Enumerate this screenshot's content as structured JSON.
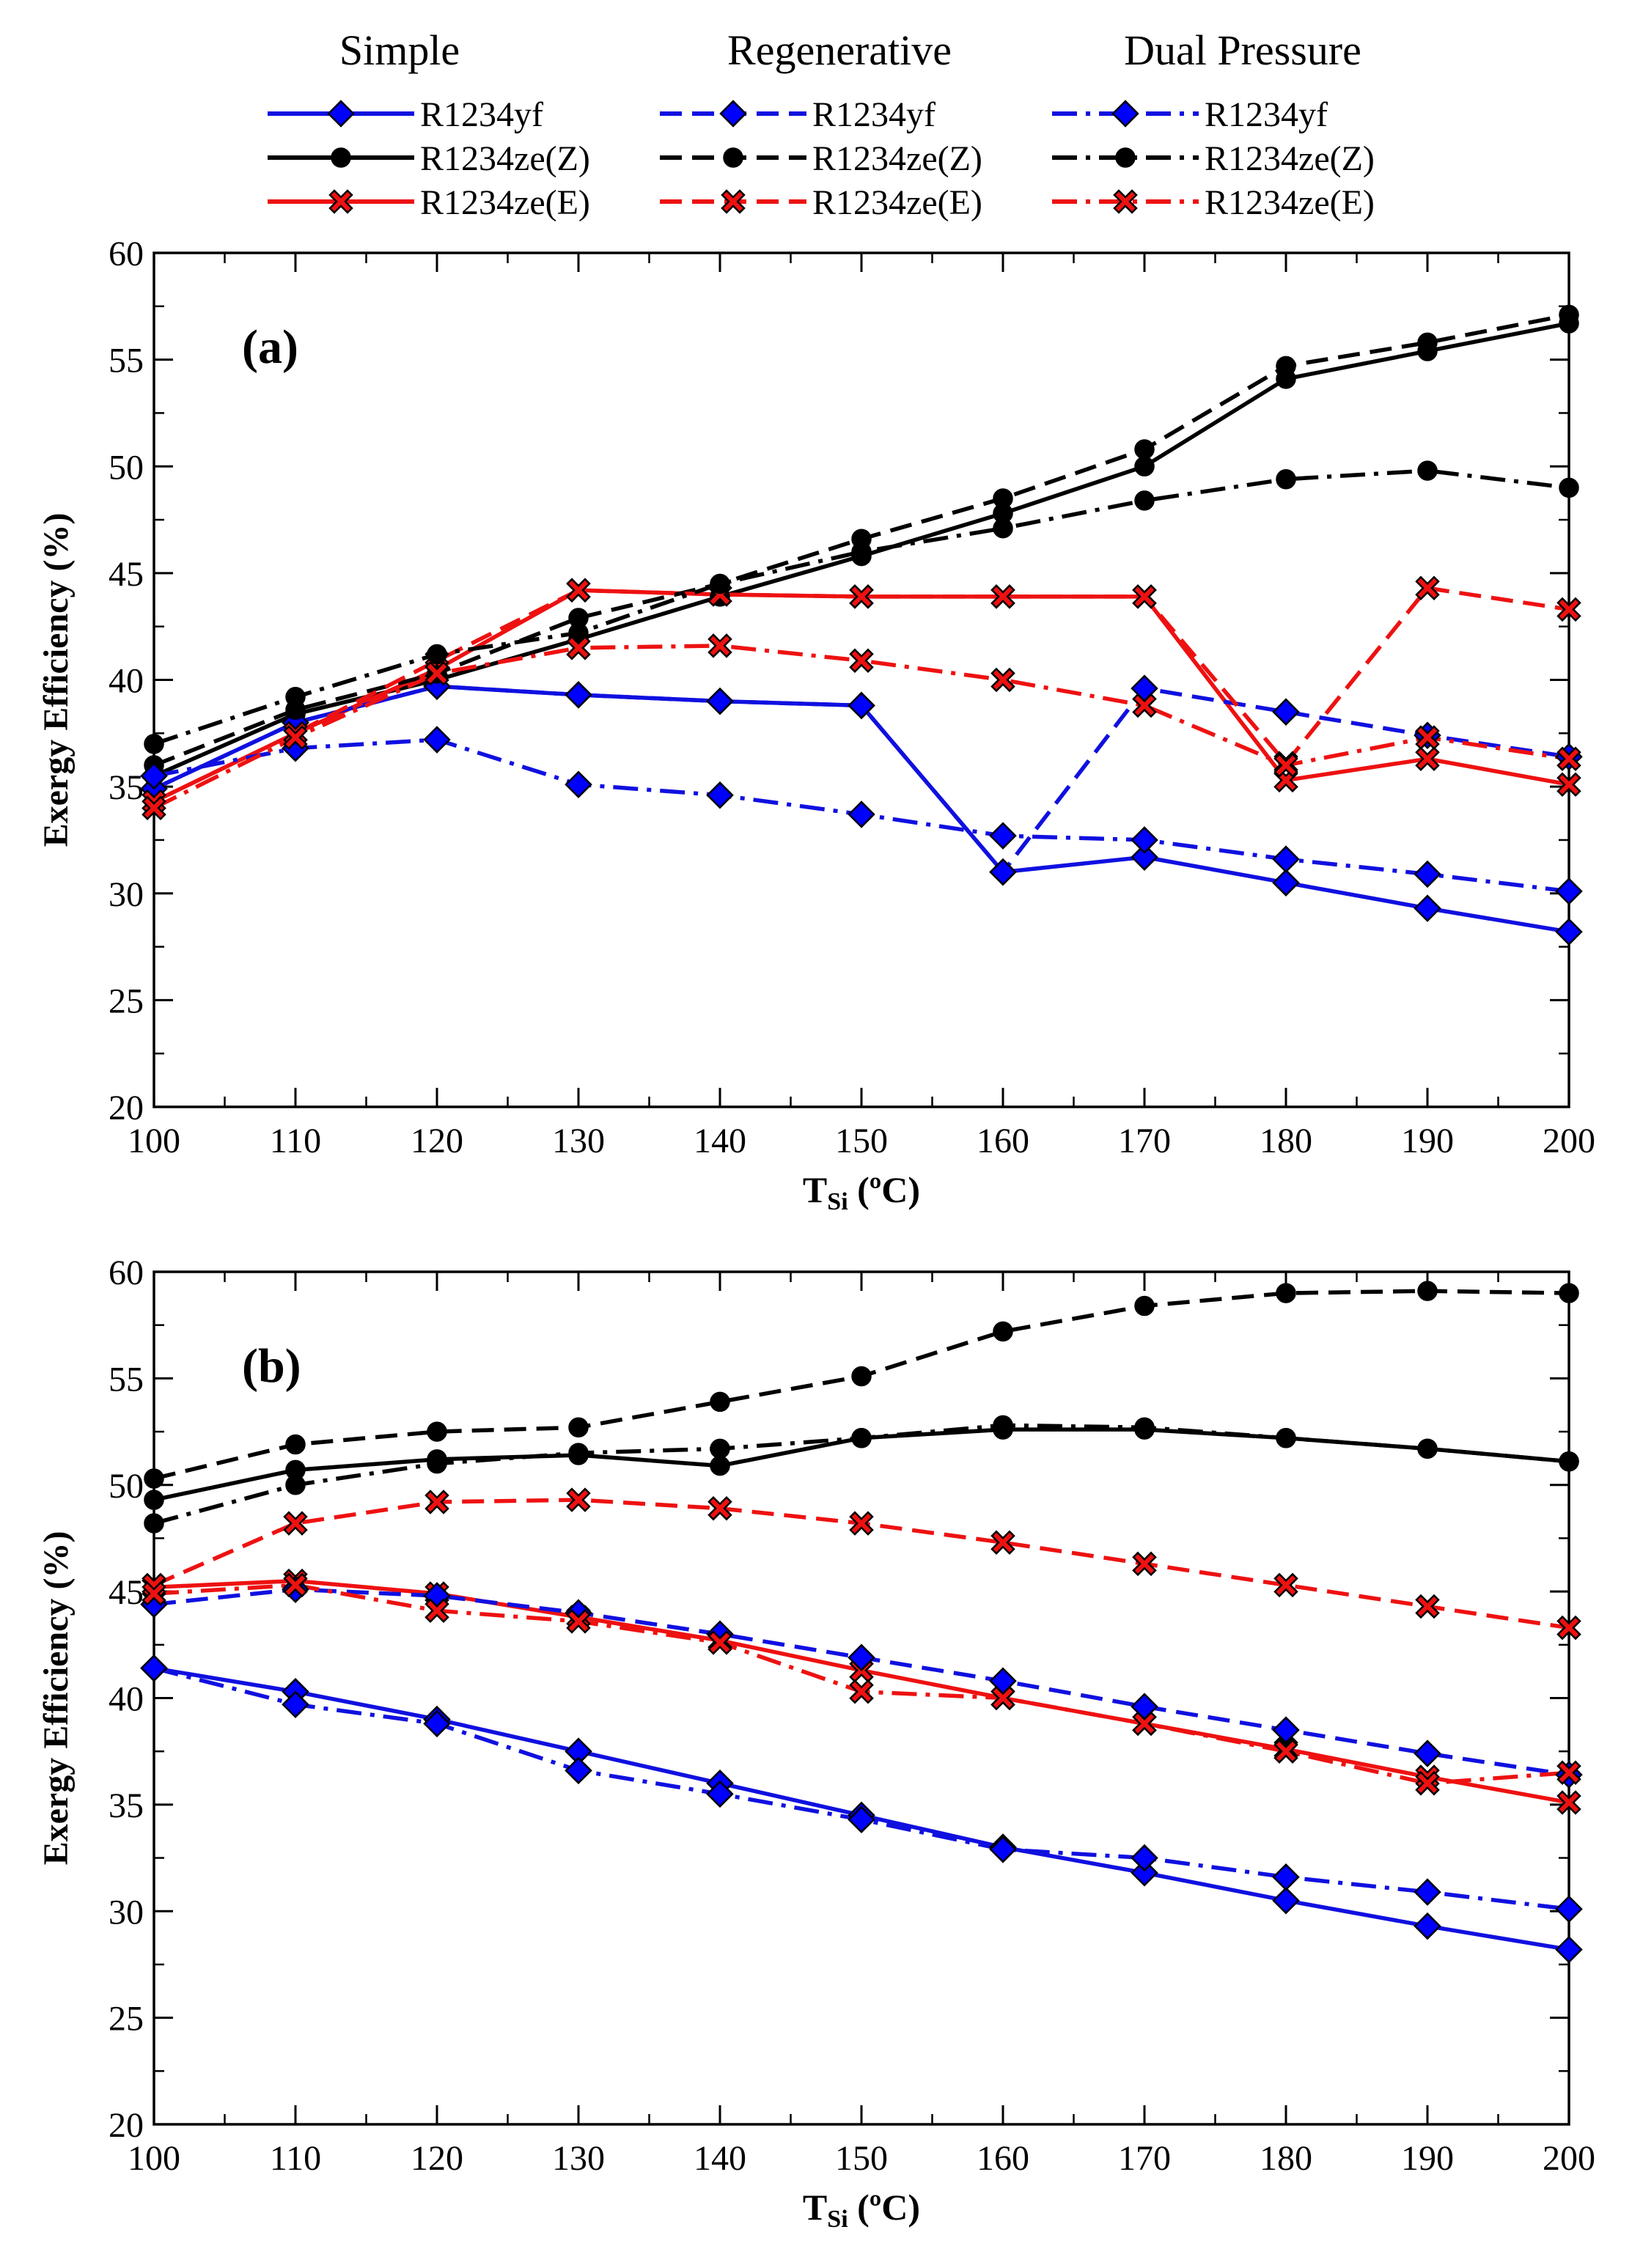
{
  "legend": {
    "groups": [
      {
        "title": "Simple",
        "dash": "solid",
        "items": [
          {
            "label": "R1234yf",
            "fluid": "yf"
          },
          {
            "label": "R1234ze(Z)",
            "fluid": "zeZ"
          },
          {
            "label": "R1234ze(E)",
            "fluid": "zeE"
          }
        ]
      },
      {
        "title": "Regenerative",
        "dash": "dashed",
        "items": [
          {
            "label": "R1234yf",
            "fluid": "yf"
          },
          {
            "label": "R1234ze(Z)",
            "fluid": "zeZ"
          },
          {
            "label": "R1234ze(E)",
            "fluid": "zeE"
          }
        ]
      },
      {
        "title": "Dual Pressure",
        "dash": "dashdot",
        "items": [
          {
            "label": "R1234yf",
            "fluid": "yf"
          },
          {
            "label": "R1234ze(Z)",
            "fluid": "zeZ"
          },
          {
            "label": "R1234ze(E)",
            "fluid": "zeE"
          }
        ]
      }
    ]
  },
  "styles": {
    "yf": {
      "color": "#1010e0",
      "marker": "diamond",
      "marker_color": "#0000ff"
    },
    "zeZ": {
      "color": "#000000",
      "marker": "circle",
      "marker_color": "#000000"
    },
    "zeE": {
      "color": "#ee1111",
      "marker": "cross",
      "marker_color": "#ee1111"
    }
  },
  "chart_data": [
    {
      "type": "line",
      "panel_label": "(a)",
      "xlabel_main": "T",
      "xlabel_sub": "Si",
      "xlabel_tail": " (ºC)",
      "ylabel": "Exergy Efficiency (%)",
      "xlim": [
        100,
        200
      ],
      "ylim": [
        20,
        60
      ],
      "xticks": [
        100,
        110,
        120,
        130,
        140,
        150,
        160,
        170,
        180,
        190,
        200
      ],
      "yticks": [
        20,
        25,
        30,
        35,
        40,
        45,
        50,
        55,
        60
      ],
      "x": [
        100,
        110,
        120,
        130,
        140,
        150,
        160,
        170,
        180,
        190,
        200
      ],
      "series": [
        {
          "name": "Simple R1234yf",
          "fluid": "yf",
          "dash": "solid",
          "values": [
            34.9,
            38.0,
            39.7,
            39.3,
            39.0,
            38.8,
            31.0,
            31.7,
            30.5,
            29.3,
            28.2
          ]
        },
        {
          "name": "Simple R1234ze(Z)",
          "fluid": "zeZ",
          "dash": "solid",
          "values": [
            35.5,
            38.4,
            40.0,
            41.9,
            43.9,
            45.8,
            47.8,
            50.0,
            54.1,
            55.4,
            56.7
          ]
        },
        {
          "name": "Simple R1234ze(E)",
          "fluid": "zeE",
          "dash": "solid",
          "values": [
            34.3,
            37.5,
            40.5,
            44.2,
            44.0,
            43.9,
            43.9,
            43.9,
            35.3,
            36.3,
            35.1
          ]
        },
        {
          "name": "Regenerative R1234yf",
          "fluid": "yf",
          "dash": "dashed",
          "values": [
            34.9,
            38.0,
            39.7,
            39.3,
            39.0,
            38.8,
            31.0,
            39.6,
            38.5,
            37.4,
            36.4
          ]
        },
        {
          "name": "Regenerative R1234ze(Z)",
          "fluid": "zeZ",
          "dash": "dashed",
          "values": [
            36.0,
            38.6,
            40.3,
            42.9,
            44.5,
            46.6,
            48.5,
            50.8,
            54.7,
            55.8,
            57.1
          ]
        },
        {
          "name": "Regenerative R1234ze(E)",
          "fluid": "zeE",
          "dash": "dashed",
          "values": [
            34.3,
            37.5,
            40.9,
            44.2,
            44.0,
            43.9,
            43.9,
            43.9,
            36.1,
            44.3,
            43.3
          ]
        },
        {
          "name": "Dual Pressure R1234yf",
          "fluid": "yf",
          "dash": "dashdot",
          "values": [
            35.5,
            36.8,
            37.2,
            35.1,
            34.6,
            33.7,
            32.7,
            32.5,
            31.6,
            30.9,
            30.1
          ]
        },
        {
          "name": "Dual Pressure R1234ze(Z)",
          "fluid": "zeZ",
          "dash": "dashdot",
          "values": [
            37.0,
            39.2,
            41.2,
            42.2,
            44.5,
            46.0,
            47.1,
            48.4,
            49.4,
            49.8,
            49.0
          ]
        },
        {
          "name": "Dual Pressure R1234ze(E)",
          "fluid": "zeE",
          "dash": "dashdot",
          "values": [
            34.0,
            37.3,
            40.3,
            41.5,
            41.6,
            40.9,
            40.0,
            38.8,
            36.0,
            37.3,
            36.3
          ]
        }
      ]
    },
    {
      "type": "line",
      "panel_label": "(b)",
      "xlabel_main": "T",
      "xlabel_sub": "Si",
      "xlabel_tail": " (ºC)",
      "ylabel": "Exergy Efficiency (%)",
      "xlim": [
        100,
        200
      ],
      "ylim": [
        20,
        60
      ],
      "xticks": [
        100,
        110,
        120,
        130,
        140,
        150,
        160,
        170,
        180,
        190,
        200
      ],
      "yticks": [
        20,
        25,
        30,
        35,
        40,
        45,
        50,
        55,
        60
      ],
      "x": [
        100,
        110,
        120,
        130,
        140,
        150,
        160,
        170,
        180,
        190,
        200
      ],
      "series": [
        {
          "name": "Simple R1234yf",
          "fluid": "yf",
          "dash": "solid",
          "values": [
            41.4,
            40.3,
            39.0,
            37.5,
            36.0,
            34.5,
            33.0,
            31.8,
            30.5,
            29.3,
            28.2
          ]
        },
        {
          "name": "Simple R1234ze(Z)",
          "fluid": "zeZ",
          "dash": "solid",
          "values": [
            49.3,
            50.7,
            51.2,
            51.4,
            50.9,
            52.2,
            52.6,
            52.6,
            52.2,
            51.7,
            51.1
          ]
        },
        {
          "name": "Simple R1234ze(E)",
          "fluid": "zeE",
          "dash": "solid",
          "values": [
            45.2,
            45.5,
            44.9,
            43.8,
            42.7,
            41.3,
            40.0,
            38.8,
            37.6,
            36.3,
            35.1
          ]
        },
        {
          "name": "Regenerative R1234yf",
          "fluid": "yf",
          "dash": "dashed",
          "values": [
            44.4,
            45.1,
            44.8,
            44.0,
            43.0,
            41.9,
            40.8,
            39.6,
            38.5,
            37.4,
            36.4
          ]
        },
        {
          "name": "Regenerative R1234ze(Z)",
          "fluid": "zeZ",
          "dash": "dashed",
          "values": [
            50.3,
            51.9,
            52.5,
            52.7,
            53.9,
            55.1,
            57.2,
            58.4,
            59.0,
            59.1,
            59.0
          ]
        },
        {
          "name": "Regenerative R1234ze(E)",
          "fluid": "zeE",
          "dash": "dashed",
          "values": [
            45.3,
            48.2,
            49.2,
            49.3,
            48.9,
            48.2,
            47.3,
            46.3,
            45.3,
            44.3,
            43.3
          ]
        },
        {
          "name": "Dual Pressure R1234yf",
          "fluid": "yf",
          "dash": "dashdot",
          "values": [
            41.4,
            39.7,
            38.8,
            36.6,
            35.5,
            34.3,
            32.9,
            32.5,
            31.6,
            30.9,
            30.1
          ]
        },
        {
          "name": "Dual Pressure R1234ze(Z)",
          "fluid": "zeZ",
          "dash": "dashdot",
          "values": [
            48.2,
            50.0,
            51.0,
            51.5,
            51.7,
            52.2,
            52.8,
            52.7,
            52.2,
            51.7,
            51.1
          ]
        },
        {
          "name": "Dual Pressure R1234ze(E)",
          "fluid": "zeE",
          "dash": "dashdot",
          "values": [
            44.9,
            45.3,
            44.1,
            43.6,
            42.6,
            40.3,
            40.0,
            38.8,
            37.5,
            36.0,
            36.5
          ]
        }
      ]
    }
  ]
}
